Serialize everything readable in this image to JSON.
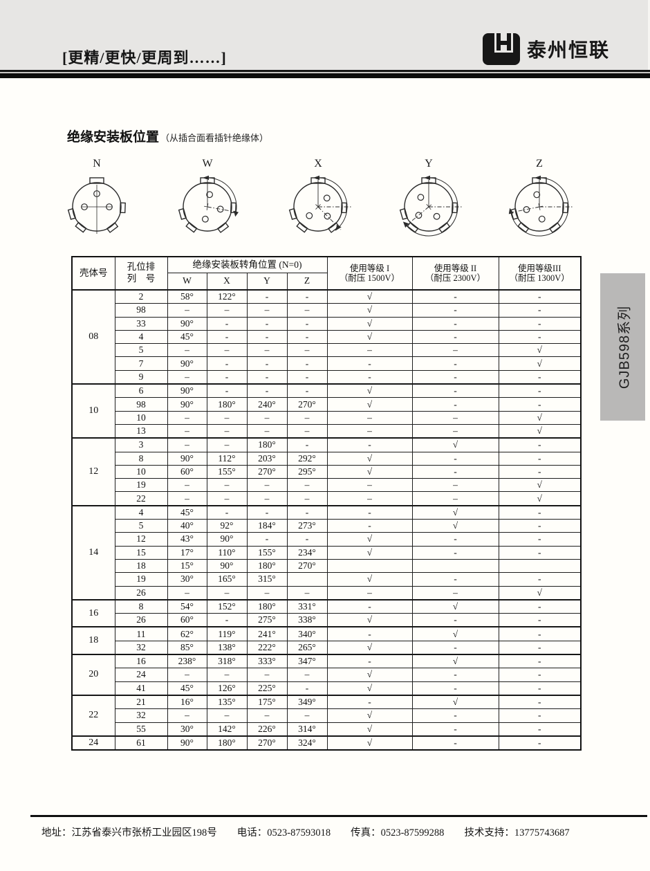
{
  "brand": {
    "tagline": "[更精/更快/更周到……]",
    "name": "泰州恒联",
    "logo": "LH"
  },
  "page": {
    "title": "绝缘安装板位置",
    "title_note": "（从插合面看插针绝缘体）",
    "side_tab": "GJB598系列"
  },
  "diagrams": [
    {
      "label": "N"
    },
    {
      "label": "W"
    },
    {
      "label": "X"
    },
    {
      "label": "Y"
    },
    {
      "label": "Z"
    }
  ],
  "table": {
    "headers": {
      "shell": "壳体号",
      "hole_line1": "孔位排",
      "hole_line2": "列　号",
      "angle_group": "绝缘安装板转角位置 (N=0)",
      "angle_cols": [
        "W",
        "X",
        "Y",
        "Z"
      ],
      "levels": [
        {
          "line1": "使用等级 I",
          "line2": "（耐压 1500V）"
        },
        {
          "line1": "使用等级 II",
          "line2": "（耐压 2300V）"
        },
        {
          "line1": "使用等级III",
          "line2": "（耐压 1300V）"
        }
      ]
    },
    "groups": [
      {
        "shell": "08",
        "rows": [
          {
            "no": "2",
            "w": "58°",
            "x": "122°",
            "y": "-",
            "z": "-",
            "l1": "√",
            "l2": "-",
            "l3": "-"
          },
          {
            "no": "98",
            "w": "–",
            "x": "–",
            "y": "–",
            "z": "–",
            "l1": "√",
            "l2": "-",
            "l3": "-"
          },
          {
            "no": "33",
            "w": "90°",
            "x": "-",
            "y": "-",
            "z": "-",
            "l1": "√",
            "l2": "-",
            "l3": "-"
          },
          {
            "no": "4",
            "w": "45°",
            "x": "-",
            "y": "-",
            "z": "-",
            "l1": "√",
            "l2": "-",
            "l3": "-"
          },
          {
            "no": "5",
            "w": "–",
            "x": "–",
            "y": "–",
            "z": "–",
            "l1": "–",
            "l2": "–",
            "l3": "√"
          },
          {
            "no": "7",
            "w": "90°",
            "x": "-",
            "y": "-",
            "z": "-",
            "l1": "-",
            "l2": "-",
            "l3": "√"
          },
          {
            "no": "9",
            "w": "–",
            "x": "-",
            "y": "-",
            "z": "-",
            "l1": "-",
            "l2": "-",
            "l3": "-"
          }
        ]
      },
      {
        "shell": "10",
        "rows": [
          {
            "no": "6",
            "w": "90°",
            "x": "-",
            "y": "-",
            "z": "-",
            "l1": "√",
            "l2": "-",
            "l3": "-"
          },
          {
            "no": "98",
            "w": "90°",
            "x": "180°",
            "y": "240°",
            "z": "270°",
            "l1": "√",
            "l2": "-",
            "l3": "-"
          },
          {
            "no": "10",
            "w": "–",
            "x": "–",
            "y": "–",
            "z": "–",
            "l1": "–",
            "l2": "–",
            "l3": "√"
          },
          {
            "no": "13",
            "w": "–",
            "x": "–",
            "y": "–",
            "z": "–",
            "l1": "–",
            "l2": "–",
            "l3": "√"
          }
        ]
      },
      {
        "shell": "12",
        "rows": [
          {
            "no": "3",
            "w": "–",
            "x": "–",
            "y": "180°",
            "z": "-",
            "l1": "-",
            "l2": "√",
            "l3": "-"
          },
          {
            "no": "8",
            "w": "90°",
            "x": "112°",
            "y": "203°",
            "z": "292°",
            "l1": "√",
            "l2": "-",
            "l3": "-"
          },
          {
            "no": "10",
            "w": "60°",
            "x": "155°",
            "y": "270°",
            "z": "295°",
            "l1": "√",
            "l2": "-",
            "l3": "-"
          },
          {
            "no": "19",
            "w": "–",
            "x": "–",
            "y": "–",
            "z": "–",
            "l1": "–",
            "l2": "–",
            "l3": "√"
          },
          {
            "no": "22",
            "w": "–",
            "x": "–",
            "y": "–",
            "z": "–",
            "l1": "–",
            "l2": "–",
            "l3": "√"
          }
        ]
      },
      {
        "shell": "14",
        "rows": [
          {
            "no": "4",
            "w": "45°",
            "x": "-",
            "y": "-",
            "z": "-",
            "l1": "-",
            "l2": "√",
            "l3": "-"
          },
          {
            "no": "5",
            "w": "40°",
            "x": "92°",
            "y": "184°",
            "z": "273°",
            "l1": "-",
            "l2": "√",
            "l3": "-"
          },
          {
            "no": "12",
            "w": "43°",
            "x": "90°",
            "y": "-",
            "z": "-",
            "l1": "√",
            "l2": "-",
            "l3": "-"
          },
          {
            "no": "15",
            "w": "17°",
            "x": "110°",
            "y": "155°",
            "z": "234°",
            "l1": "√",
            "l2": "-",
            "l3": "-"
          },
          {
            "no": "18",
            "w": "15°",
            "x": "90°",
            "y": "180°",
            "z": "270°",
            "l1": "",
            "l2": "",
            "l3": ""
          },
          {
            "no": "19",
            "w": "30°",
            "x": "165°",
            "y": "315°",
            "z": "",
            "l1": "√",
            "l2": "-",
            "l3": "-"
          },
          {
            "no": "26",
            "w": "–",
            "x": "–",
            "y": "–",
            "z": "–",
            "l1": "–",
            "l2": "–",
            "l3": "√"
          }
        ]
      },
      {
        "shell": "16",
        "rows": [
          {
            "no": "8",
            "w": "54°",
            "x": "152°",
            "y": "180°",
            "z": "331°",
            "l1": "-",
            "l2": "√",
            "l3": "-"
          },
          {
            "no": "26",
            "w": "60°",
            "x": "-",
            "y": "275°",
            "z": "338°",
            "l1": "√",
            "l2": "-",
            "l3": "-"
          }
        ]
      },
      {
        "shell": "18",
        "rows": [
          {
            "no": "11",
            "w": "62°",
            "x": "119°",
            "y": "241°",
            "z": "340°",
            "l1": "-",
            "l2": "√",
            "l3": "-"
          },
          {
            "no": "32",
            "w": "85°",
            "x": "138°",
            "y": "222°",
            "z": "265°",
            "l1": "√",
            "l2": "-",
            "l3": "-"
          }
        ]
      },
      {
        "shell": "20",
        "rows": [
          {
            "no": "16",
            "w": "238°",
            "x": "318°",
            "y": "333°",
            "z": "347°",
            "l1": "-",
            "l2": "√",
            "l3": "-"
          },
          {
            "no": "24",
            "w": "–",
            "x": "–",
            "y": "–",
            "z": "–",
            "l1": "√",
            "l2": "-",
            "l3": "-"
          },
          {
            "no": "41",
            "w": "45°",
            "x": "126°",
            "y": "225°",
            "z": "-",
            "l1": "√",
            "l2": "-",
            "l3": "-"
          }
        ]
      },
      {
        "shell": "22",
        "rows": [
          {
            "no": "21",
            "w": "16°",
            "x": "135°",
            "y": "175°",
            "z": "349°",
            "l1": "-",
            "l2": "√",
            "l3": "-"
          },
          {
            "no": "32",
            "w": "–",
            "x": "–",
            "y": "–",
            "z": "–",
            "l1": "√",
            "l2": "-",
            "l3": "-"
          },
          {
            "no": "55",
            "w": "30°",
            "x": "142°",
            "y": "226°",
            "z": "314°",
            "l1": "√",
            "l2": "-",
            "l3": "-"
          }
        ]
      },
      {
        "shell": "24",
        "rows": [
          {
            "no": "61",
            "w": "90°",
            "x": "180°",
            "y": "270°",
            "z": "324°",
            "l1": "√",
            "l2": "-",
            "l3": "-"
          }
        ]
      }
    ]
  },
  "footer": {
    "items": [
      "地址：江苏省泰兴市张桥工业园区198号",
      "电话：0523-87593018",
      "传真：0523-87599288",
      "技术支持：13775743687"
    ]
  }
}
